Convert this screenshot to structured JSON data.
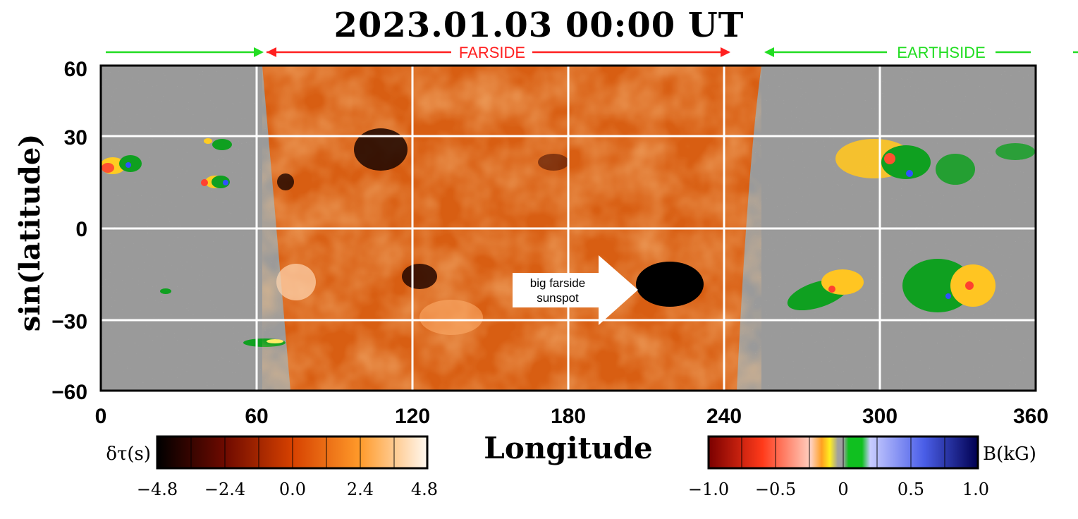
{
  "title": "2023.01.03  00:00  UT",
  "bands": {
    "farside": "FARSIDE",
    "earthside": "EARTHSIDE"
  },
  "axes": {
    "xlabel": "Longitude",
    "ylabel": "sin(latitude)",
    "xticks": [
      "0",
      "60",
      "120",
      "180",
      "240",
      "300",
      "360"
    ],
    "yticks": [
      "60",
      "30",
      "0",
      "−30",
      "−60"
    ]
  },
  "annotation": {
    "line1": "big farside",
    "line2": "sunspot"
  },
  "colorbars": {
    "left": {
      "label": "δτ(s)",
      "ticks": [
        "−4.8",
        "−2.4",
        "0.0",
        "2.4",
        "4.8"
      ]
    },
    "right": {
      "label": "B(kG)",
      "ticks": [
        "−1.0",
        "−0.5",
        "0",
        "0.5",
        "1.0"
      ]
    }
  },
  "colors": {
    "earthside_arrow": "#22dd22",
    "farside_arrow": "#ff2020",
    "grid": "#ffffff",
    "background_gray": "#9a9a9a"
  }
}
